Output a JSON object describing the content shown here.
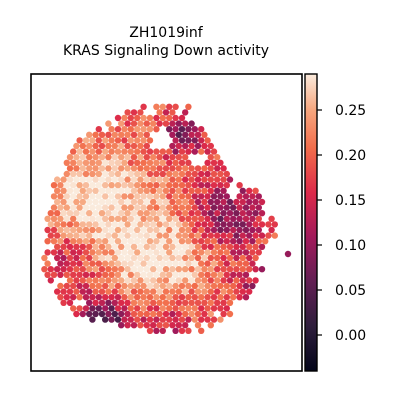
{
  "chart_data": {
    "type": "heatmap",
    "title_lines": [
      "ZH1019inf",
      "KRAS Signaling Down activity"
    ],
    "colorbar": {
      "colormap": "rocket",
      "range": [
        -0.04,
        0.29
      ],
      "ticks": [
        {
          "value": 0.25,
          "label": "0.25"
        },
        {
          "value": 0.2,
          "label": "0.20"
        },
        {
          "value": 0.15,
          "label": "0.15"
        },
        {
          "value": 0.1,
          "label": "0.10"
        },
        {
          "value": 0.05,
          "label": "0.05"
        },
        {
          "value": 0.0,
          "label": "0.00"
        }
      ]
    },
    "spots_description": "hexagonal spatial spots colored by activity score (-0.04 to 0.29)",
    "axes": {
      "xticks": [],
      "yticks": []
    }
  }
}
